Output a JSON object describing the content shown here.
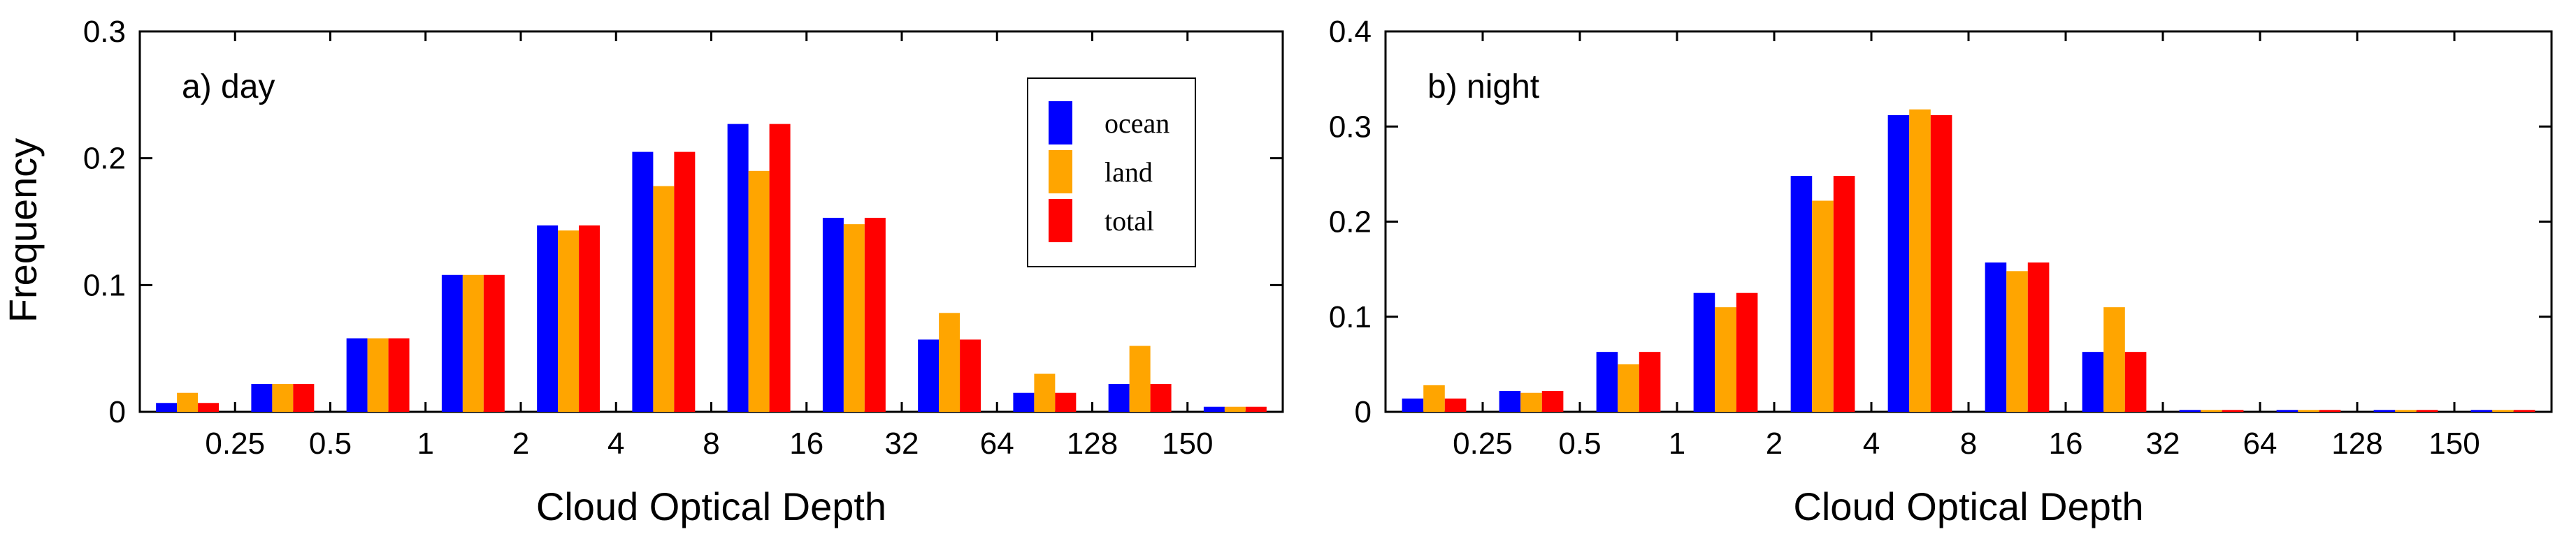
{
  "series_colors": {
    "ocean": "#0000ff",
    "land": "#ffa500",
    "total": "#ff0000"
  },
  "chart_data": [
    {
      "type": "bar",
      "panel_label": "a) day",
      "xlabel": "Cloud Optical Depth",
      "ylabel": "Frequency",
      "ylim": [
        0,
        0.3
      ],
      "yticks": [
        "0",
        "0.1",
        "0.2",
        "0.3"
      ],
      "x_boundary_labels": [
        "0.25",
        "0.5",
        "1",
        "2",
        "4",
        "8",
        "16",
        "32",
        "64",
        "128",
        "150"
      ],
      "legend": {
        "position": "top-right",
        "entries": [
          "ocean",
          "land",
          "total"
        ]
      },
      "series": [
        {
          "name": "ocean",
          "values": [
            0.007,
            0.022,
            0.058,
            0.108,
            0.147,
            0.205,
            0.227,
            0.153,
            0.057,
            0.015,
            0.022,
            0.004
          ]
        },
        {
          "name": "land",
          "values": [
            0.015,
            0.022,
            0.058,
            0.108,
            0.143,
            0.178,
            0.19,
            0.148,
            0.078,
            0.03,
            0.052,
            0.004
          ]
        },
        {
          "name": "total",
          "values": [
            0.007,
            0.022,
            0.058,
            0.108,
            0.147,
            0.205,
            0.227,
            0.153,
            0.057,
            0.015,
            0.022,
            0.004
          ]
        }
      ]
    },
    {
      "type": "bar",
      "panel_label": "b) night",
      "xlabel": "Cloud Optical Depth",
      "ylabel": "",
      "ylim": [
        0,
        0.4
      ],
      "yticks": [
        "0",
        "0.1",
        "0.2",
        "0.3",
        "0.4"
      ],
      "x_boundary_labels": [
        "0.25",
        "0.5",
        "1",
        "2",
        "4",
        "8",
        "16",
        "32",
        "64",
        "128",
        "150"
      ],
      "series": [
        {
          "name": "ocean",
          "values": [
            0.014,
            0.022,
            0.063,
            0.125,
            0.248,
            0.312,
            0.157,
            0.063,
            0.002,
            0.002,
            0.002,
            0.002
          ]
        },
        {
          "name": "land",
          "values": [
            0.028,
            0.02,
            0.05,
            0.11,
            0.222,
            0.318,
            0.148,
            0.11,
            0.002,
            0.002,
            0.002,
            0.002
          ]
        },
        {
          "name": "total",
          "values": [
            0.014,
            0.022,
            0.063,
            0.125,
            0.248,
            0.312,
            0.157,
            0.063,
            0.002,
            0.002,
            0.002,
            0.002
          ]
        }
      ]
    }
  ]
}
